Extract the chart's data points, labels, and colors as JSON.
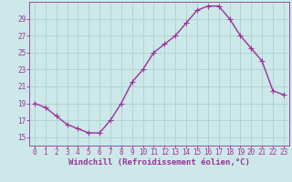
{
  "x": [
    0,
    1,
    2,
    3,
    4,
    5,
    6,
    7,
    8,
    9,
    10,
    11,
    12,
    13,
    14,
    15,
    16,
    17,
    18,
    19,
    20,
    21,
    22,
    23
  ],
  "y": [
    19.0,
    18.5,
    17.5,
    16.5,
    16.0,
    15.5,
    15.5,
    17.0,
    19.0,
    21.5,
    23.0,
    25.0,
    26.0,
    27.0,
    28.5,
    30.0,
    30.5,
    30.5,
    29.0,
    27.0,
    25.5,
    24.0,
    20.5,
    20.0
  ],
  "line_color": "#993399",
  "marker": "+",
  "marker_size": 4,
  "bg_color": "#cce8e8",
  "grid_color": "#aacccc",
  "xlabel": "Windchill (Refroidissement éolien,°C)",
  "xlim": [
    -0.5,
    23.5
  ],
  "ylim": [
    14.0,
    31.0
  ],
  "yticks": [
    15,
    17,
    19,
    21,
    23,
    25,
    27,
    29
  ],
  "xticks": [
    0,
    1,
    2,
    3,
    4,
    5,
    6,
    7,
    8,
    9,
    10,
    11,
    12,
    13,
    14,
    15,
    16,
    17,
    18,
    19,
    20,
    21,
    22,
    23
  ],
  "xlabel_color": "#993399",
  "tick_color": "#993399",
  "tick_fontsize": 5.5,
  "xlabel_fontsize": 6.5,
  "line_width": 1.0,
  "spine_color": "#993399",
  "marker_edge_width": 0.8
}
